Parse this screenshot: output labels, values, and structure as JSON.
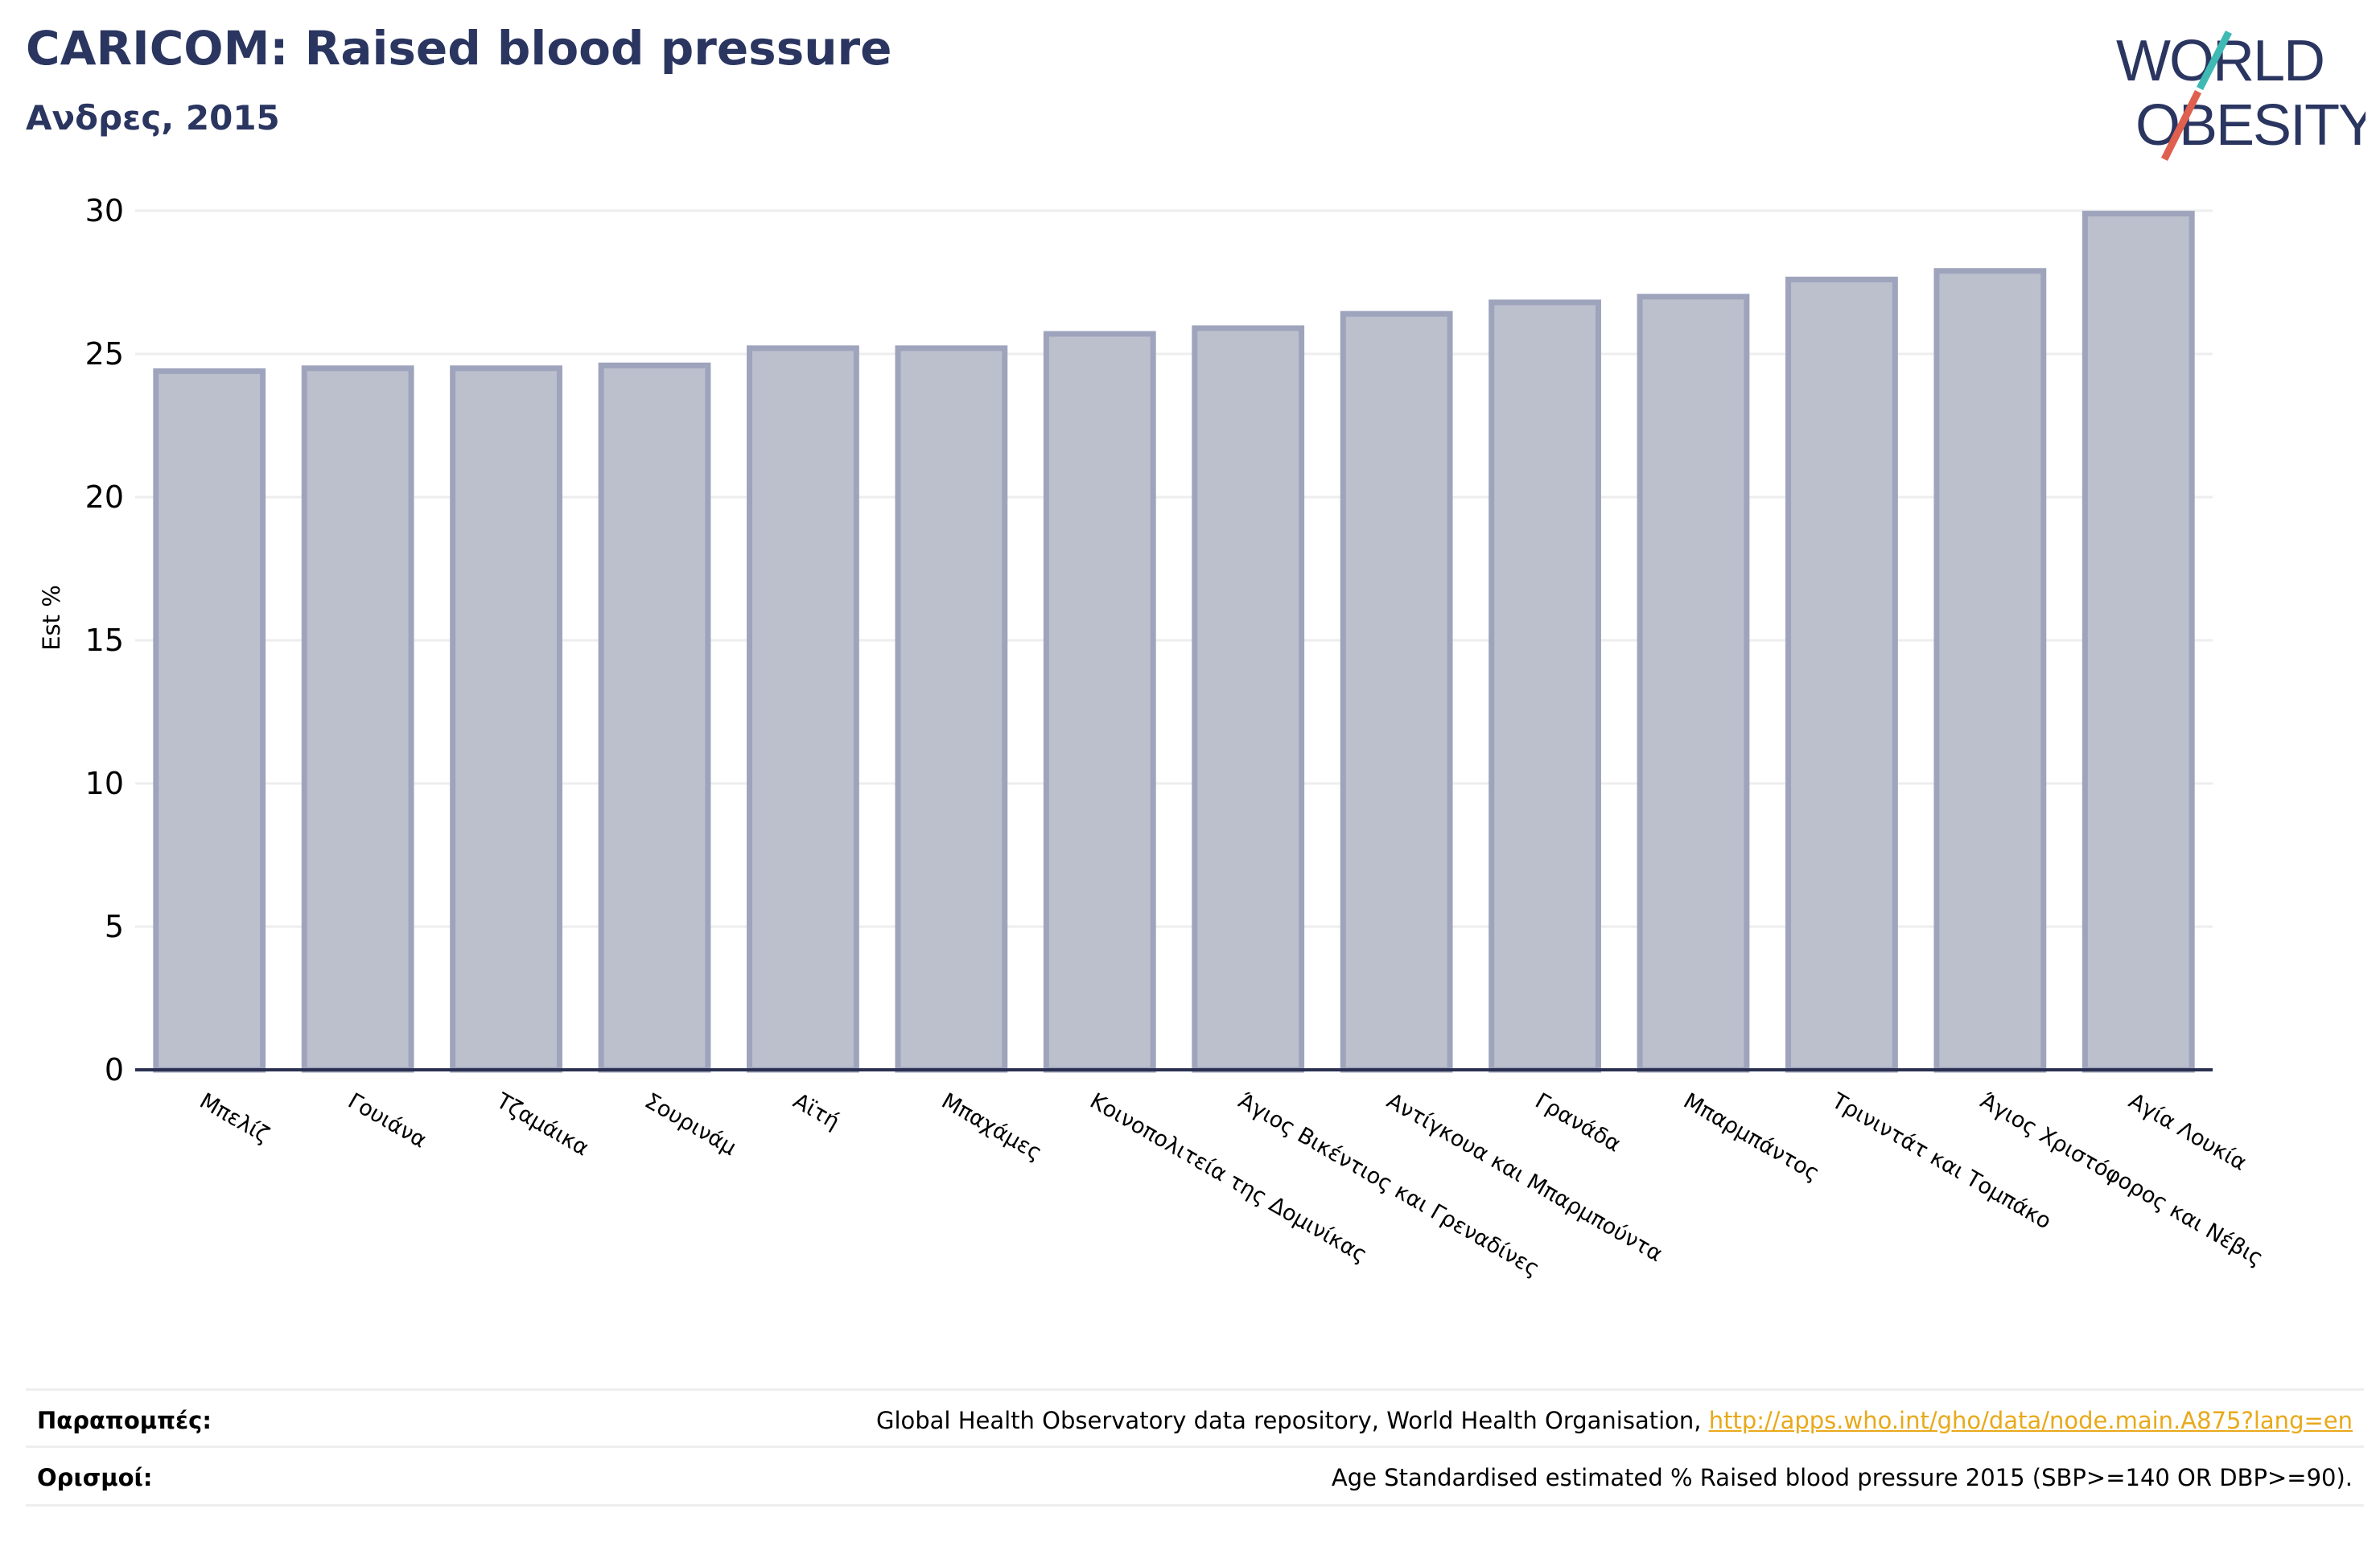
{
  "header": {
    "title": "CARICOM: Raised blood pressure",
    "subtitle": "Ανδρες, 2015"
  },
  "logo": {
    "line1": "WORLD",
    "line2": "OBESITY",
    "colors": {
      "text": "#2a3560",
      "slash_teal": "#3fb9b4",
      "slash_red": "#e0604f"
    }
  },
  "chart_data": {
    "type": "bar",
    "ylabel": "Est %",
    "ylim": [
      0,
      30
    ],
    "yticks": [
      0,
      5,
      10,
      15,
      20,
      25,
      30
    ],
    "grid": true,
    "categories": [
      "Μπελίζ",
      "Γουιάνα",
      "Τζαμάικα",
      "Σουρινάμ",
      "Αϊτή",
      "Μπαχάμες",
      "Κοινοπολιτεία της Δομινίκας",
      "Άγιος Βικέντιος και Γρεναδίνες",
      "Αντίγκουα και Μπαρμπούντα",
      "Γρανάδα",
      "Μπαρμπάντος",
      "Τρινιντάτ και Τομπάκο",
      "Άγιος Χριστόφορος και Νέβις",
      "Αγία Λουκία"
    ],
    "values": [
      24.4,
      24.5,
      24.5,
      24.6,
      25.2,
      25.2,
      25.7,
      25.9,
      26.4,
      26.8,
      27.0,
      27.6,
      27.9,
      29.9
    ],
    "colors": {
      "bar_fill": "#bcc0cd",
      "bar_stroke": "#9fa4bd",
      "axis": "#2a3050",
      "grid": "#eeeeee"
    }
  },
  "footer": {
    "references_label": "Παραπομπές:",
    "references_text": "Global Health Observatory data repository, World Health Organisation,",
    "references_link": "http://apps.who.int/gho/data/node.main.A875?lang=en",
    "definitions_label": "Ορισμοί:",
    "definitions_text": "Age Standardised estimated % Raised blood pressure 2015 (SBP>=140 OR DBP>=90)."
  }
}
